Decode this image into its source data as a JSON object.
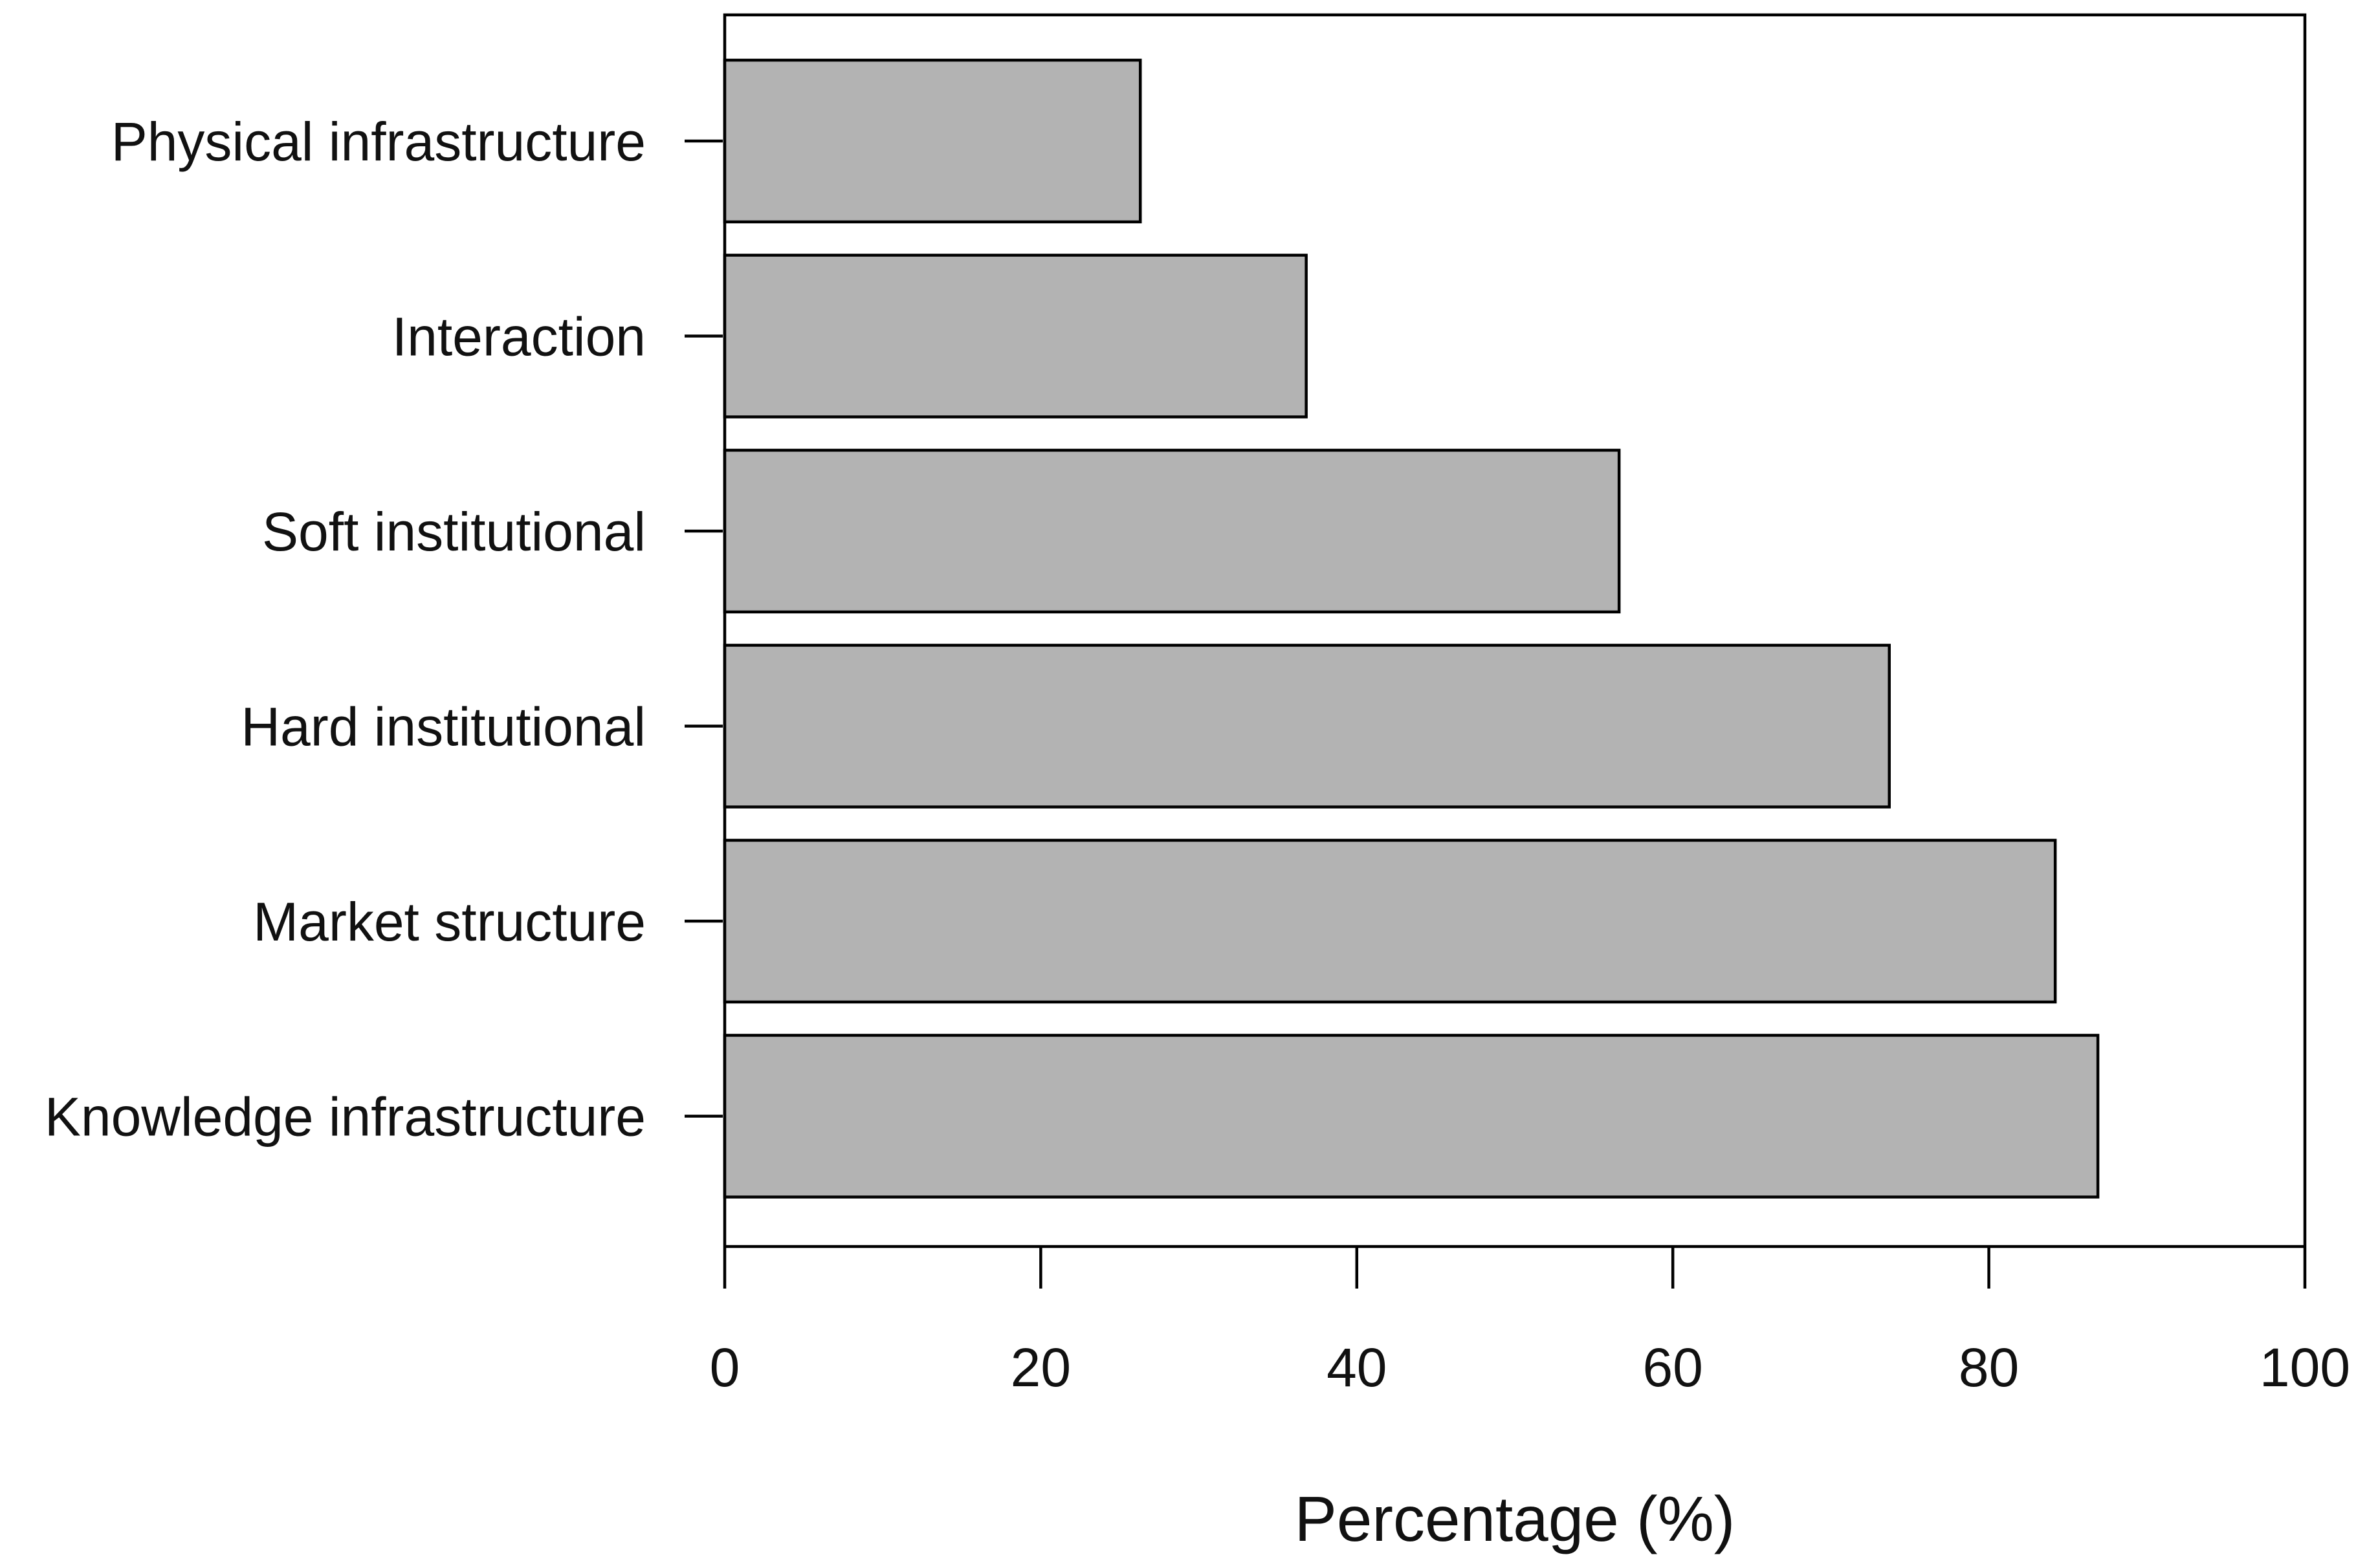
{
  "chart_data": {
    "type": "bar",
    "orientation": "horizontal",
    "categories": [
      "Physical infrastructure",
      "Interaction",
      "Soft institutional",
      "Hard institutional",
      "Market structure",
      "Knowledge infrastructure"
    ],
    "values": [
      26.3,
      36.8,
      56.6,
      73.7,
      84.2,
      86.9
    ],
    "xlabel": "Percentage (%)",
    "ylabel": "",
    "title": "",
    "xlim": [
      0,
      100
    ],
    "xticks": [
      0,
      20,
      40,
      60,
      80,
      100
    ],
    "xtick_labels": [
      "0",
      "20",
      "40",
      "60",
      "80",
      "100"
    ],
    "bar_color": "#b3b3b3",
    "edge_color": "#000000",
    "grid": false,
    "legend": "none"
  }
}
